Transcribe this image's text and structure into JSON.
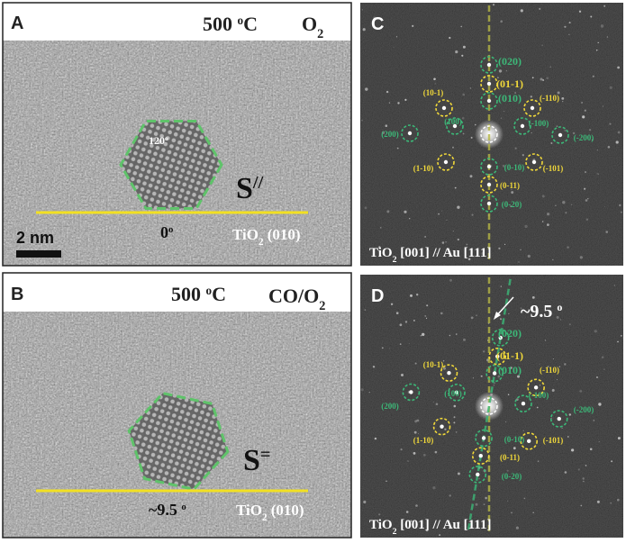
{
  "panel_a": {
    "letter": "A",
    "temperature": [
      "500 ",
      "o",
      "C"
    ],
    "gas": [
      "O",
      "2"
    ],
    "inner_angle": [
      "120",
      "o"
    ],
    "facet": [
      "S",
      "//"
    ],
    "edge_angle": [
      "0",
      "o"
    ],
    "substrate": [
      "TiO",
      "2",
      " (010)"
    ],
    "scale_bar": "2 nm"
  },
  "panel_b": {
    "letter": "B",
    "temperature": [
      "500 ",
      "o",
      "C"
    ],
    "gas": [
      "CO/O",
      "2"
    ],
    "facet": [
      "S",
      "="
    ],
    "edge_angle": [
      "~9.5 ",
      "o"
    ],
    "substrate": [
      "TiO",
      "2",
      " (010)"
    ]
  },
  "panel_c": {
    "letter": "C",
    "caption": [
      "TiO",
      "2",
      " [001] // Au [111]"
    ],
    "spots": [
      {
        "label": "(020)",
        "color": "#3cb878"
      },
      {
        "label": "(01-1)",
        "color": "#f0d83a"
      },
      {
        "label": "(010)",
        "color": "#3cb878"
      },
      {
        "label": "(10-1)",
        "color": "#f0d83a"
      },
      {
        "label": "(-110)",
        "color": "#f0d83a"
      },
      {
        "label": "(100)",
        "color": "#3cb878"
      },
      {
        "label": "(-100)",
        "color": "#3cb878"
      },
      {
        "label": "(200)",
        "color": "#3cb878"
      },
      {
        "label": "(-200)",
        "color": "#3cb878"
      },
      {
        "label": "(1-10)",
        "color": "#f0d83a"
      },
      {
        "label": "(-101)",
        "color": "#f0d83a"
      },
      {
        "label": "(0-10)",
        "color": "#3cb878"
      },
      {
        "label": "(0-11)",
        "color": "#f0d83a"
      },
      {
        "label": "(0-20)",
        "color": "#3cb878"
      }
    ]
  },
  "panel_d": {
    "letter": "D",
    "caption": [
      "TiO",
      "2",
      " [001] // Au [111]"
    ],
    "rotation": [
      "~9.5 ",
      "o"
    ],
    "spots": [
      {
        "label": "(020)",
        "color": "#3cb878"
      },
      {
        "label": "(01-1)",
        "color": "#f0d83a"
      },
      {
        "label": "(010)",
        "color": "#3cb878"
      },
      {
        "label": "(10-1)",
        "color": "#f0d83a"
      },
      {
        "label": "(-110)",
        "color": "#f0d83a"
      },
      {
        "label": "(100)",
        "color": "#3cb878"
      },
      {
        "label": "(-100)",
        "color": "#3cb878"
      },
      {
        "label": "(200)",
        "color": "#3cb878"
      },
      {
        "label": "(-200)",
        "color": "#3cb878"
      },
      {
        "label": "(1-10)",
        "color": "#f0d83a"
      },
      {
        "label": "(-101)",
        "color": "#f0d83a"
      },
      {
        "label": "(0-10)",
        "color": "#3cb878"
      },
      {
        "label": "(0-11)",
        "color": "#f0d83a"
      },
      {
        "label": "(0-20)",
        "color": "#3cb878"
      }
    ]
  }
}
